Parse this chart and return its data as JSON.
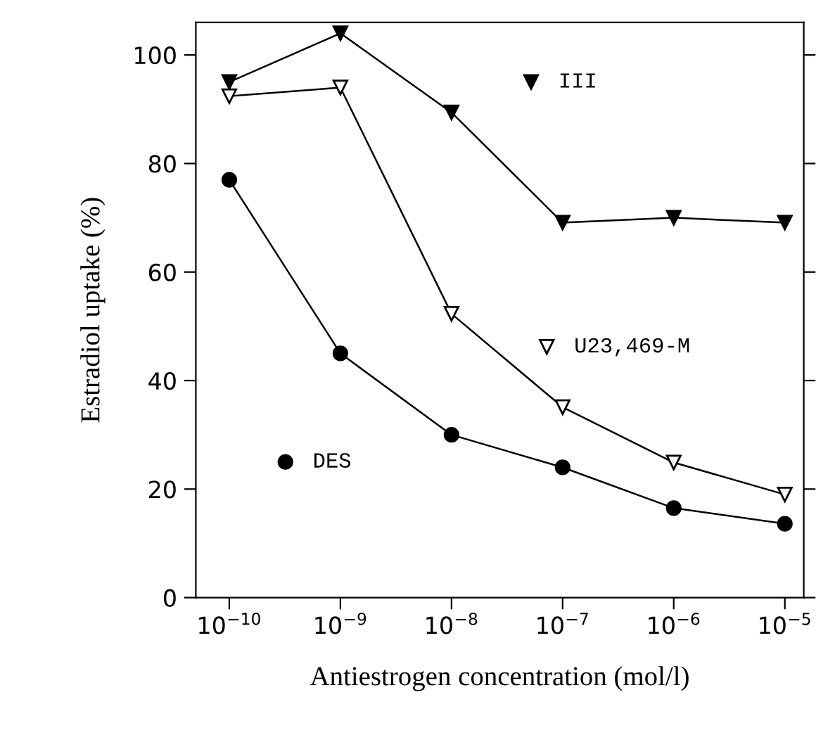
{
  "chart_data": {
    "type": "line",
    "xlabel": "Antiestrogen concentration (mol/l)",
    "ylabel": "Estradiol uptake (%)",
    "log": "x",
    "x": [
      1e-10,
      1e-09,
      1e-08,
      1e-07,
      1e-06,
      1e-05
    ],
    "series": [
      {
        "color": "#000000",
        "marker": "triangle_down_filled",
        "values": [
          95,
          104,
          89.4,
          69.1,
          70,
          69.1
        ]
      },
      {
        "color": "#000000",
        "marker": "triangle_down_open",
        "values": [
          92.4,
          94,
          52.3,
          35.1,
          24.9,
          19
        ]
      },
      {
        "color": "#000000",
        "marker": "circle",
        "values": [
          77,
          45,
          30,
          24,
          16.5,
          13.6
        ]
      }
    ],
    "annotations": [
      {
        "text": "III",
        "x": 5.2e-08,
        "y": 95
      },
      {
        "text": "U23,469-M",
        "x": 7.2e-08,
        "y": 46.2
      },
      {
        "text": "DES",
        "x": 3.2e-10,
        "y": 25
      }
    ],
    "xlim": [
      5e-11,
      1.48e-05
    ],
    "ylim": [
      0,
      106
    ],
    "xticks": [
      {
        "value": 1e-10,
        "label": "10$^{−10}$"
      },
      {
        "value": 1e-09,
        "label": "10$^{−9}$"
      },
      {
        "value": 1e-08,
        "label": "10$^{−8}$"
      },
      {
        "value": 1e-07,
        "label": "10$^{−7}$"
      },
      {
        "value": 1e-06,
        "label": "10$^{−6}$"
      },
      {
        "value": 1e-05,
        "label": "10$^{−5}$"
      }
    ],
    "yticks": [
      0,
      20,
      40,
      60,
      80,
      100
    ],
    "grid": false,
    "legend": false
  }
}
